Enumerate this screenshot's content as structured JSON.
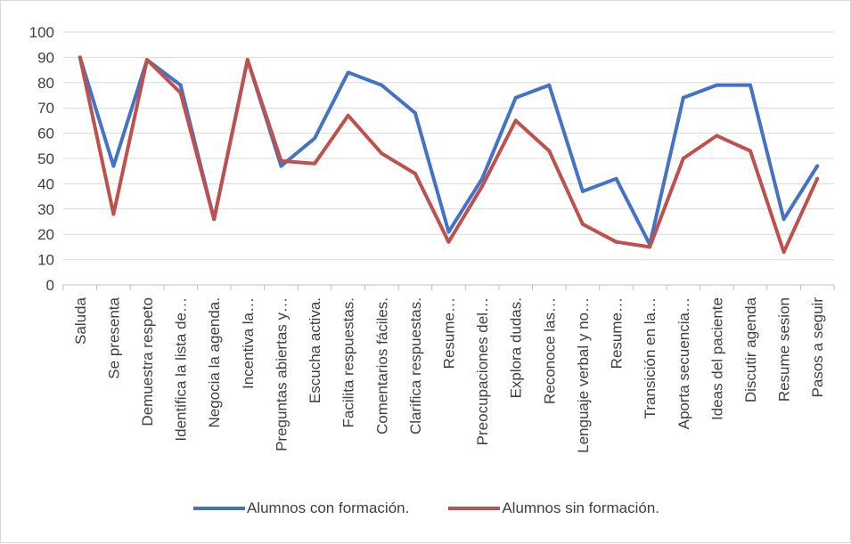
{
  "chart_data": {
    "type": "line",
    "categories": [
      "Saluda",
      "Se presenta",
      "Demuestra respeto",
      "Identifica la lista de…",
      "Negocia la agenda.",
      "Incentiva la…",
      "Preguntas abiertas y…",
      "Escucha activa.",
      "Facilita respuestas.",
      "Comentarios fáciles.",
      "Clarifica respuestas.",
      "Resume…",
      "Preocupaciones del…",
      "Explora dudas.",
      "Reconoce las…",
      "Lenguaje verbal y no…",
      "Resume…",
      "Transición en la…",
      "Aporta secuencia…",
      "Ideas del paciente",
      "Discutir agenda",
      "Resume sesion",
      "Pasos a seguir"
    ],
    "series": [
      {
        "name": "Alumnos con formación.",
        "color": "#4472C4",
        "values": [
          90,
          47,
          89,
          79,
          26,
          89,
          47,
          58,
          84,
          79,
          68,
          21,
          42,
          74,
          79,
          37,
          42,
          16,
          74,
          79,
          79,
          26,
          47
        ]
      },
      {
        "name": "Alumnos sin formación.",
        "color": "#C0504D",
        "values": [
          90,
          28,
          89,
          76,
          26,
          89,
          49,
          48,
          67,
          52,
          44,
          17,
          39,
          65,
          53,
          24,
          17,
          15,
          50,
          59,
          53,
          13,
          42
        ]
      }
    ],
    "ylim": [
      0,
      100
    ],
    "yticks": [
      "0",
      "10",
      "20",
      "30",
      "40",
      "50",
      "60",
      "70",
      "80",
      "90",
      "100"
    ],
    "grid": true,
    "legend_position": "bottom",
    "title": "",
    "xlabel": "",
    "ylabel": ""
  }
}
